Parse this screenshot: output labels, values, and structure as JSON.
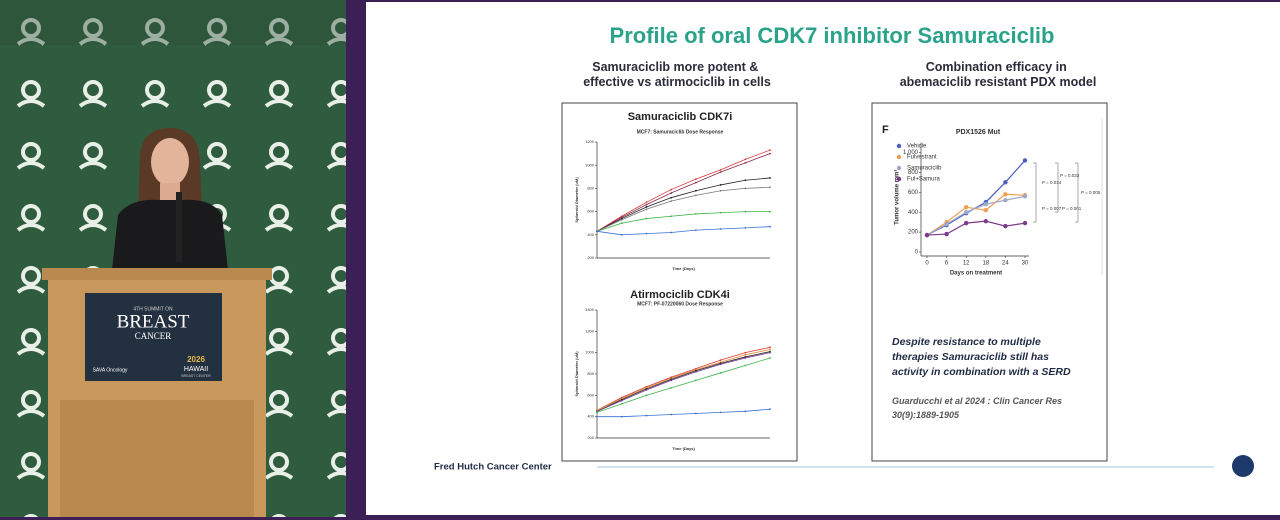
{
  "video": {
    "podium": {
      "edition": "4TH SUMMIT ON",
      "event": "BREAST",
      "event_sub": "CANCER",
      "org": "SAVA Oncology",
      "year": "2026",
      "place": "HAWAII",
      "center": "BREAST CENTER"
    }
  },
  "slide": {
    "title": "Profile of oral CDK7 inhibitor Samuraciclib",
    "left_heading": [
      "Samuraciclib more potent &",
      "effective vs atirmociclib in cells"
    ],
    "right_heading": [
      "Combination efficacy in",
      "abemaciclib resistant PDX model"
    ],
    "note": [
      "Despite resistance to multiple",
      "therapies Samuraciclib still has",
      "activity in combination with a SERD"
    ],
    "citation": [
      "Guarducchi et al 2024 : Clin Cancer Res",
      "30(9):1889-1905"
    ],
    "footer": "Fred Hutch Cancer Center"
  },
  "chart_data": [
    {
      "type": "line",
      "heading": "Samuraciclib CDK7i",
      "title": "MCF7: Samuraciclib Dose Response",
      "x_label": "Time (Days)",
      "y_label": "Spheroid Diameter (uM)",
      "ylim": [
        200,
        1200
      ],
      "yticks": [
        200,
        400,
        600,
        800,
        1000,
        1200
      ],
      "series": [
        {
          "color": "#d93a3a",
          "values": [
            430,
            560,
            680,
            790,
            880,
            960,
            1050,
            1130
          ]
        },
        {
          "color": "#8a2a4a",
          "values": [
            430,
            550,
            660,
            760,
            850,
            940,
            1020,
            1100
          ]
        },
        {
          "color": "#222222",
          "values": [
            430,
            540,
            640,
            720,
            780,
            830,
            870,
            890
          ]
        },
        {
          "color": "#777777",
          "values": [
            430,
            530,
            620,
            690,
            740,
            780,
            800,
            810
          ]
        },
        {
          "color": "#3cb44b",
          "values": [
            430,
            500,
            540,
            560,
            580,
            590,
            600,
            600
          ]
        },
        {
          "color": "#3a6fd8",
          "values": [
            430,
            400,
            410,
            420,
            440,
            450,
            460,
            470
          ]
        }
      ]
    },
    {
      "type": "line",
      "heading": "Atirmociclib CDK4i",
      "title": "MCF7: PF-07220060 Dose Response",
      "x_label": "Time (Days)",
      "y_label": "Spheroid Diameter (uM)",
      "ylim": [
        200,
        1400
      ],
      "yticks": [
        200,
        400,
        600,
        800,
        1000,
        1200,
        1400
      ],
      "series": [
        {
          "color": "#d93a3a",
          "values": [
            460,
            580,
            680,
            770,
            850,
            930,
            1000,
            1050
          ]
        },
        {
          "color": "#e08a2a",
          "values": [
            460,
            570,
            670,
            760,
            840,
            910,
            980,
            1030
          ]
        },
        {
          "color": "#222222",
          "values": [
            450,
            560,
            660,
            750,
            830,
            900,
            960,
            1010
          ]
        },
        {
          "color": "#7a3a9a",
          "values": [
            450,
            550,
            650,
            740,
            820,
            890,
            950,
            1000
          ]
        },
        {
          "color": "#3cb44b",
          "values": [
            440,
            520,
            600,
            670,
            740,
            810,
            880,
            950
          ]
        },
        {
          "color": "#3a6fd8",
          "values": [
            400,
            400,
            410,
            420,
            430,
            440,
            450,
            470
          ]
        }
      ]
    },
    {
      "type": "line",
      "panel": "F",
      "title": "PDX1526 Mut",
      "x_label": "Days on treatment",
      "y_label": "Tumor volume mm³",
      "x": [
        0,
        6,
        12,
        18,
        24,
        30
      ],
      "xlim": [
        0,
        30
      ],
      "xticks": [
        0,
        6,
        12,
        18,
        24,
        30
      ],
      "ylim": [
        0,
        1100
      ],
      "yticks": [
        0,
        200,
        400,
        600,
        800,
        {
          "value": 1000,
          "label": "1,000"
        }
      ],
      "legend": "upper left",
      "series": [
        {
          "name": "Vehicle",
          "color": "#4a5fc1",
          "values": [
            170,
            270,
            390,
            500,
            700,
            920
          ]
        },
        {
          "name": "Fulvestrant",
          "color": "#f0a050",
          "values": [
            170,
            300,
            450,
            420,
            580,
            570
          ]
        },
        {
          "name": "Samuraciclib",
          "color": "#a0a8c8",
          "values": [
            170,
            280,
            400,
            480,
            520,
            560
          ]
        },
        {
          "name": "Ful+Samura",
          "color": "#7b3a8a",
          "values": [
            170,
            180,
            290,
            310,
            260,
            290
          ]
        }
      ],
      "annotations": [
        "P = 0.033",
        "P = 0.034",
        "P = 0.005",
        "P = 0.007",
        "P = 0.001"
      ]
    }
  ]
}
